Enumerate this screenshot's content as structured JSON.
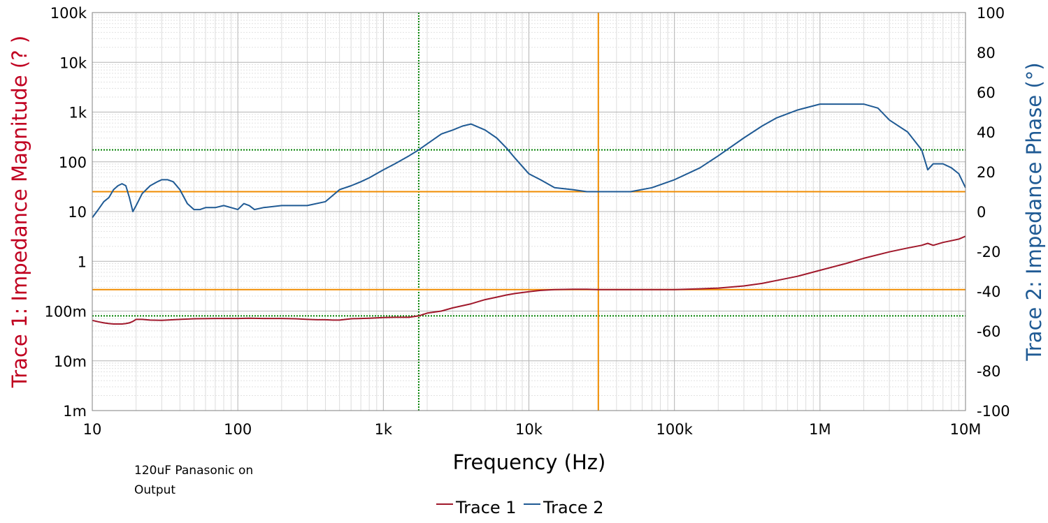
{
  "chart_data": {
    "type": "line",
    "xlabel": "Frequency (Hz)",
    "x_scale": "log",
    "xlim": [
      10,
      10000000
    ],
    "x_ticks": [
      {
        "value": 10,
        "label": "10"
      },
      {
        "value": 100,
        "label": "100"
      },
      {
        "value": 1000,
        "label": "1k"
      },
      {
        "value": 10000,
        "label": "10k"
      },
      {
        "value": 100000,
        "label": "100k"
      },
      {
        "value": 1000000,
        "label": "1M"
      },
      {
        "value": 10000000,
        "label": "10M"
      }
    ],
    "ylabel_left": "Trace 1: Impedance Magnitude (? )",
    "y_left_scale": "log",
    "ylim_left": [
      0.001,
      100000
    ],
    "y_left_ticks": [
      {
        "value": 100000,
        "label": "100k"
      },
      {
        "value": 10000,
        "label": "10k"
      },
      {
        "value": 1000,
        "label": "1k"
      },
      {
        "value": 100,
        "label": "100"
      },
      {
        "value": 10,
        "label": "10"
      },
      {
        "value": 1,
        "label": "1"
      },
      {
        "value": 0.1,
        "label": "100m"
      },
      {
        "value": 0.01,
        "label": "10m"
      },
      {
        "value": 0.001,
        "label": "1m"
      }
    ],
    "ylabel_right": "Trace 2: Impedance Phase (°)",
    "ylim_right": [
      -100,
      100
    ],
    "y_right_ticks": [
      {
        "value": 100,
        "label": "100"
      },
      {
        "value": 80,
        "label": "80"
      },
      {
        "value": 60,
        "label": "60"
      },
      {
        "value": 40,
        "label": "40"
      },
      {
        "value": 20,
        "label": "20"
      },
      {
        "value": 0,
        "label": "0"
      },
      {
        "value": -20,
        "label": "-20"
      },
      {
        "value": -40,
        "label": "-40"
      },
      {
        "value": -60,
        "label": "-60"
      },
      {
        "value": -80,
        "label": "-80"
      },
      {
        "value": -100,
        "label": "-100"
      }
    ],
    "grid": true,
    "annotation": "120uF Panasonic on Output",
    "legend_position": "bottom-center",
    "cursors": [
      {
        "axis": "x",
        "value": 1750,
        "style": "dotted",
        "color": "#008000"
      },
      {
        "axis": "y_left",
        "value": 0.08,
        "style": "dotted",
        "color": "#008000"
      },
      {
        "axis": "y_right",
        "value": 31,
        "style": "dotted",
        "color": "#008000"
      },
      {
        "axis": "x",
        "value": 30000,
        "style": "solid",
        "color": "#f08c00"
      },
      {
        "axis": "y_left",
        "value": 0.27,
        "style": "solid",
        "color": "#f08c00"
      },
      {
        "axis": "y_right",
        "value": 10,
        "style": "solid",
        "color": "#f08c00"
      }
    ],
    "series": [
      {
        "name": "Trace 1",
        "axis": "left",
        "color": "#a0182b",
        "x": [
          10,
          11,
          12,
          13,
          14,
          15,
          16,
          17,
          18,
          19,
          20,
          22,
          25,
          30,
          40,
          50,
          70,
          100,
          120,
          150,
          200,
          250,
          300,
          350,
          400,
          450,
          500,
          600,
          700,
          800,
          1000,
          1200,
          1500,
          1750,
          2000,
          2500,
          3000,
          4000,
          5000,
          6000,
          7000,
          8000,
          10000,
          12000,
          15000,
          20000,
          25000,
          30000,
          40000,
          50000,
          70000,
          100000,
          150000,
          200000,
          300000,
          400000,
          500000,
          700000,
          1000000,
          1500000,
          2000000,
          3000000,
          4000000,
          5000000,
          5500000,
          6000000,
          7000000,
          8000000,
          9000000,
          10000000
        ],
        "values": [
          0.065,
          0.061,
          0.058,
          0.056,
          0.055,
          0.055,
          0.055,
          0.056,
          0.058,
          0.062,
          0.068,
          0.068,
          0.066,
          0.065,
          0.068,
          0.07,
          0.071,
          0.071,
          0.072,
          0.071,
          0.071,
          0.07,
          0.068,
          0.067,
          0.067,
          0.066,
          0.066,
          0.07,
          0.071,
          0.072,
          0.074,
          0.075,
          0.075,
          0.08,
          0.091,
          0.1,
          0.116,
          0.14,
          0.17,
          0.19,
          0.21,
          0.225,
          0.245,
          0.26,
          0.27,
          0.275,
          0.275,
          0.27,
          0.27,
          0.27,
          0.27,
          0.27,
          0.28,
          0.29,
          0.32,
          0.36,
          0.41,
          0.5,
          0.66,
          0.9,
          1.15,
          1.55,
          1.85,
          2.1,
          2.3,
          2.1,
          2.4,
          2.6,
          2.8,
          3.2
        ]
      },
      {
        "name": "Trace 2",
        "axis": "right",
        "color": "#1f5a94",
        "x": [
          10,
          11,
          12,
          13,
          14,
          15,
          16,
          17,
          18,
          19,
          20,
          22,
          25,
          28,
          30,
          33,
          36,
          40,
          45,
          50,
          55,
          60,
          70,
          80,
          90,
          100,
          110,
          120,
          130,
          150,
          200,
          250,
          300,
          400,
          500,
          600,
          700,
          800,
          1000,
          1200,
          1500,
          1750,
          2000,
          2500,
          3000,
          3500,
          4000,
          5000,
          6000,
          7000,
          8000,
          10000,
          12000,
          15000,
          20000,
          25000,
          30000,
          40000,
          50000,
          70000,
          100000,
          150000,
          200000,
          300000,
          400000,
          500000,
          700000,
          1000000,
          1500000,
          2000000,
          2500000,
          3000000,
          4000000,
          5000000,
          5500000,
          6000000,
          7000000,
          8000000,
          9000000,
          10000000
        ],
        "values": [
          -3,
          1,
          5,
          7,
          11,
          13,
          14,
          13,
          7,
          0,
          3,
          9,
          13,
          15,
          16,
          16,
          15,
          11,
          4,
          1,
          1,
          2,
          2,
          3,
          2,
          1,
          4,
          3,
          1,
          2,
          3,
          3,
          3,
          5,
          11,
          13,
          15,
          17,
          21,
          24,
          28,
          31,
          34,
          39,
          41,
          43,
          44,
          41,
          37,
          32,
          27,
          19,
          16,
          12,
          11,
          10,
          10,
          10,
          10,
          12,
          16,
          22,
          28,
          37,
          43,
          47,
          51,
          54,
          54,
          54,
          52,
          46,
          40,
          31,
          21,
          24,
          24,
          22,
          19,
          12
        ]
      }
    ]
  }
}
